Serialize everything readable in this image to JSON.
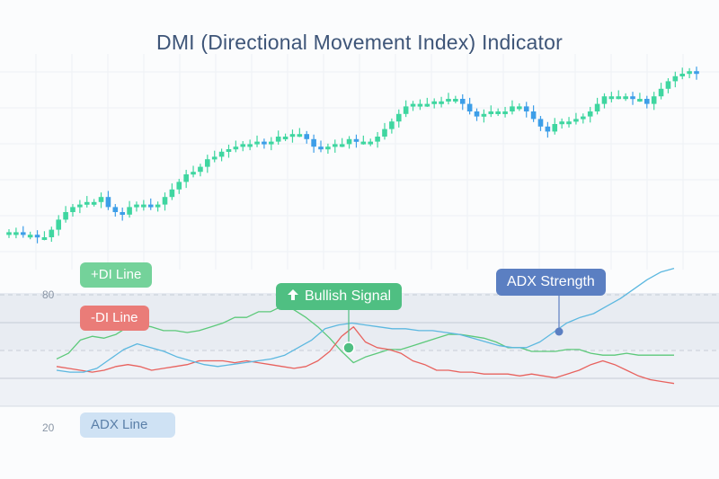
{
  "title": "DMI (Directional Movement Index) Indicator",
  "labels": {
    "plus_di": "+DI Line",
    "minus_di": "-DI Line",
    "adx": "ADX Line",
    "bullish_signal": "Bullish Signal",
    "adx_strength": "ADX Strength"
  },
  "colors": {
    "candle_up": "#3fd6a0",
    "candle_down": "#3d9ee8",
    "plus_di": "#5cc97a",
    "minus_di": "#e8625e",
    "adx": "#5cb8e0",
    "bullish": "#4fbf82",
    "adx_strength": "#5b7fc2"
  },
  "chart_data": [
    {
      "type": "candlestick",
      "title": "DMI (Directional Movement Index) Indicator",
      "ylim": [
        0,
        100
      ],
      "closes": [
        22,
        22,
        21,
        21,
        20,
        20,
        23,
        27,
        30,
        32,
        33,
        34,
        34,
        36,
        32,
        30,
        29,
        32,
        33,
        33,
        32,
        33,
        36,
        39,
        42,
        45,
        46,
        48,
        51,
        52,
        54,
        55,
        56,
        57,
        57,
        58,
        57,
        58,
        60,
        60,
        61,
        61,
        59,
        56,
        55,
        56,
        57,
        57,
        59,
        58,
        58,
        58,
        60,
        63,
        66,
        69,
        72,
        73,
        73,
        73,
        74,
        74,
        75,
        75,
        73,
        70,
        68,
        69,
        70,
        70,
        70,
        72,
        72,
        70,
        67,
        64,
        62,
        65,
        66,
        66,
        67,
        68,
        70,
        73,
        76,
        76,
        76,
        76,
        75,
        75,
        73,
        76,
        79,
        82,
        84,
        85,
        86,
        85
      ]
    },
    {
      "type": "line",
      "ylim": [
        0,
        100
      ],
      "yticks": [
        80,
        20
      ],
      "series": [
        {
          "name": "+DI Line",
          "values": [
            46,
            49,
            56,
            58,
            57,
            59,
            63,
            64,
            63,
            61,
            61,
            60,
            61,
            63,
            65,
            68,
            68,
            71,
            71,
            74,
            72,
            68,
            63,
            57,
            50,
            44,
            47,
            49,
            51,
            51,
            53,
            55,
            57,
            59,
            59,
            58,
            57,
            55,
            52,
            52,
            50,
            50,
            50,
            51,
            51,
            49,
            48,
            48,
            49,
            48,
            48,
            48,
            48
          ]
        },
        {
          "name": "-DI Line",
          "values": [
            42,
            41,
            40,
            39,
            40,
            42,
            43,
            42,
            40,
            41,
            42,
            43,
            45,
            45,
            45,
            44,
            45,
            44,
            43,
            42,
            41,
            42,
            45,
            50,
            58,
            63,
            55,
            52,
            51,
            49,
            45,
            43,
            40,
            40,
            39,
            39,
            38,
            38,
            38,
            37,
            38,
            37,
            36,
            38,
            40,
            43,
            45,
            43,
            40,
            37,
            35,
            34,
            33
          ]
        },
        {
          "name": "ADX Line",
          "values": [
            40,
            39,
            39,
            41,
            46,
            51,
            54,
            52,
            50,
            47,
            45,
            43,
            42,
            43,
            44,
            45,
            46,
            48,
            52,
            56,
            62,
            64,
            65,
            64,
            63,
            62,
            62,
            61,
            61,
            60,
            59,
            57,
            55,
            53,
            52,
            52,
            55,
            60,
            65,
            68,
            70,
            74,
            78,
            83,
            88,
            92,
            94
          ]
        }
      ]
    }
  ]
}
